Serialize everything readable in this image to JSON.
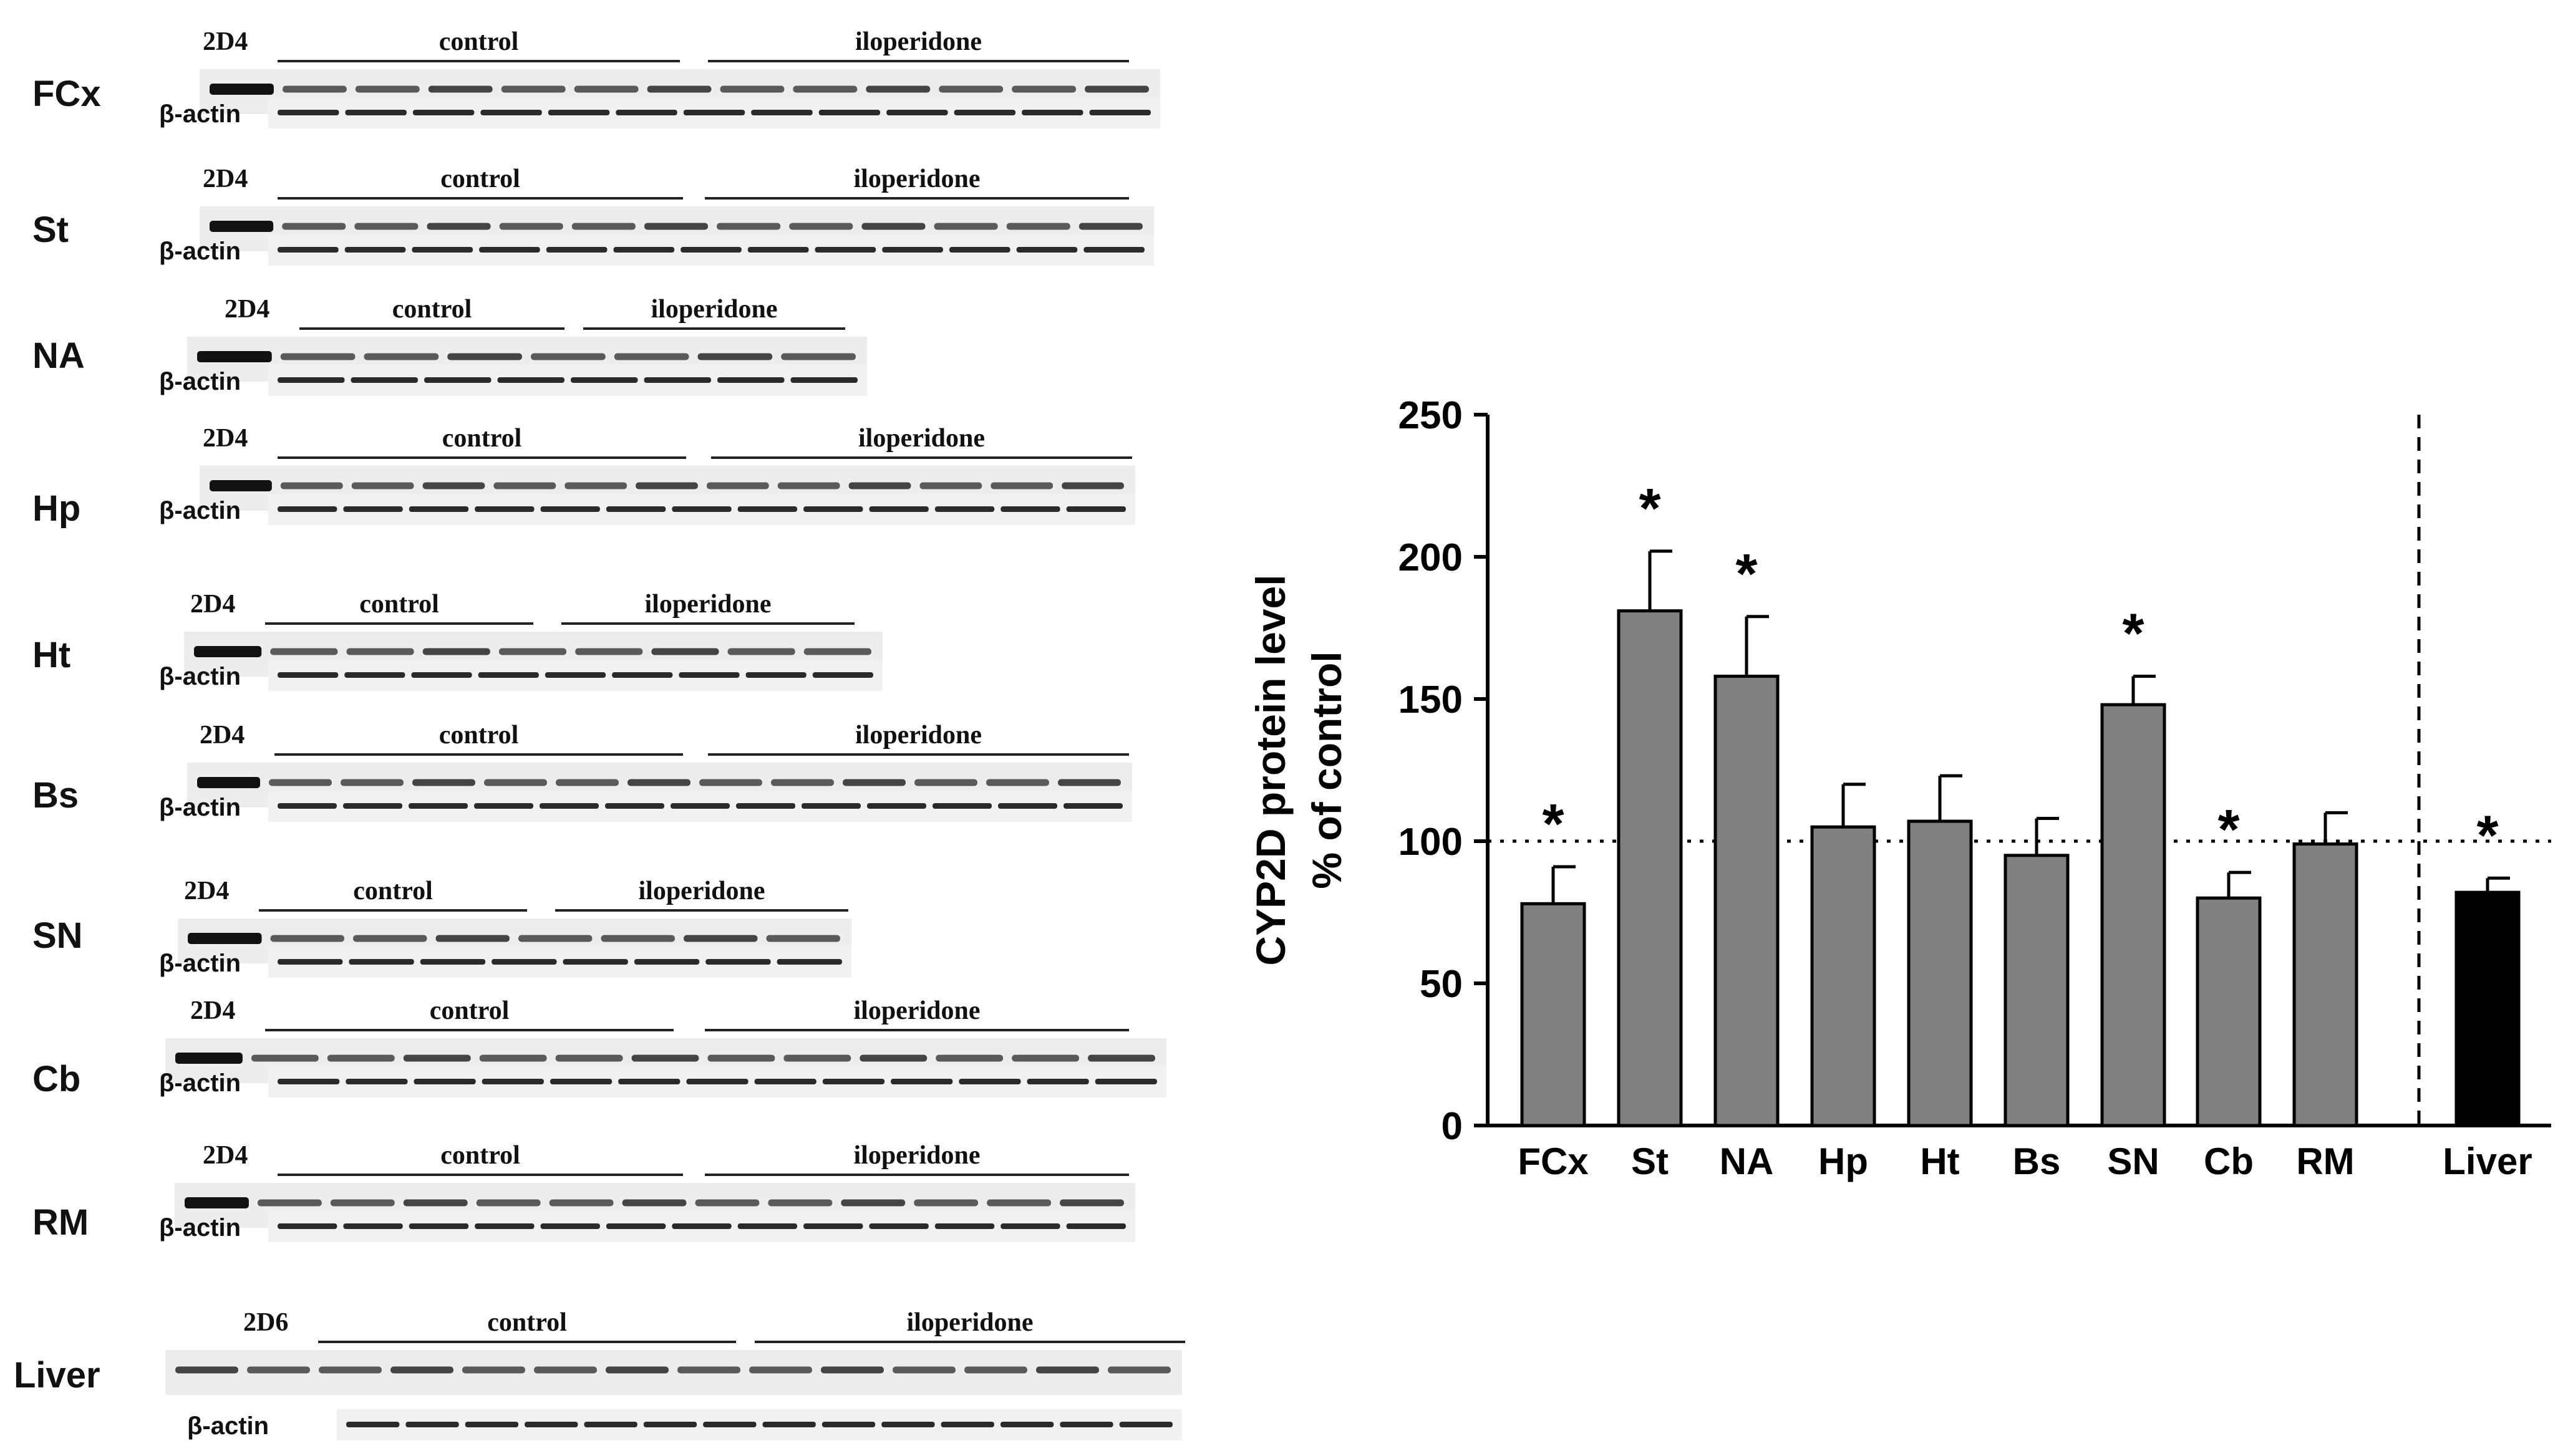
{
  "blots": [
    {
      "tissue": "FCx",
      "enzyme": "2D4",
      "group1": "control",
      "group2": "iloperidone",
      "loading": "β-actin"
    },
    {
      "tissue": "St",
      "enzyme": "2D4",
      "group1": "control",
      "group2": "iloperidone",
      "loading": "β-actin"
    },
    {
      "tissue": "NA",
      "enzyme": "2D4",
      "group1": "control",
      "group2": "iloperidone",
      "loading": "β-actin"
    },
    {
      "tissue": "Hp",
      "enzyme": "2D4",
      "group1": "control",
      "group2": "iloperidone",
      "loading": "β-actin"
    },
    {
      "tissue": "Ht",
      "enzyme": "2D4",
      "group1": "control",
      "group2": "iloperidone",
      "loading": "β-actin"
    },
    {
      "tissue": "Bs",
      "enzyme": "2D4",
      "group1": "control",
      "group2": "iloperidone",
      "loading": "β-actin"
    },
    {
      "tissue": "SN",
      "enzyme": "2D4",
      "group1": "control",
      "group2": "iloperidone",
      "loading": "β-actin"
    },
    {
      "tissue": "Cb",
      "enzyme": "2D4",
      "group1": "control",
      "group2": "iloperidone",
      "loading": "β-actin"
    },
    {
      "tissue": "RM",
      "enzyme": "2D4",
      "group1": "control",
      "group2": "iloperidone",
      "loading": "β-actin"
    },
    {
      "tissue": "Liver",
      "enzyme": "2D6",
      "group1": "control",
      "group2": "iloperidone",
      "loading": "β-actin"
    }
  ],
  "chart_data": {
    "type": "bar",
    "title": "",
    "xlabel": "",
    "ylabel": "CYP2D protein level",
    "ylabel2": "% of control",
    "ylim": [
      0,
      250
    ],
    "yticks": [
      0,
      50,
      100,
      150,
      200,
      250
    ],
    "reference_line": 100,
    "categories": [
      "FCx",
      "St",
      "NA",
      "Hp",
      "Ht",
      "Bs",
      "SN",
      "Cb",
      "RM",
      "Liver"
    ],
    "values": [
      78,
      181,
      158,
      105,
      107,
      95,
      148,
      80,
      99,
      82
    ],
    "errors": [
      13,
      21,
      21,
      15,
      16,
      13,
      10,
      9,
      11,
      5
    ],
    "significant": [
      true,
      true,
      true,
      false,
      false,
      false,
      true,
      true,
      false,
      true
    ],
    "significance_mark": "*",
    "bar_colors": [
      "#808080",
      "#808080",
      "#808080",
      "#808080",
      "#808080",
      "#808080",
      "#808080",
      "#808080",
      "#808080",
      "#000000"
    ],
    "separator_before": "Liver"
  }
}
